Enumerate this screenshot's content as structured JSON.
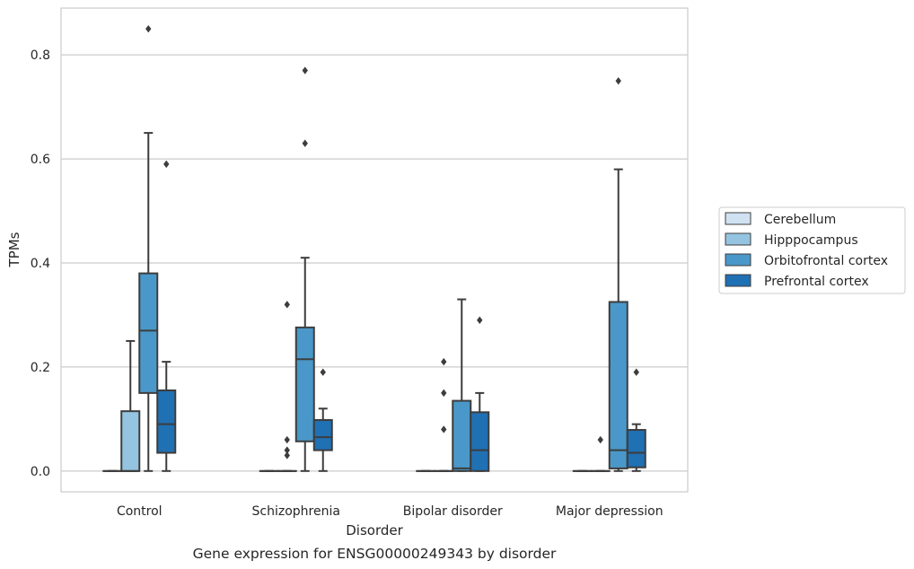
{
  "chart_data": {
    "type": "box",
    "title": "",
    "xlabel": "Disorder",
    "ylabel": "TPMs",
    "caption": "Gene expression for ENSG00000249343 by disorder",
    "categories": [
      "Control",
      "Schizophrenia",
      "Bipolar disorder",
      "Major depression"
    ],
    "ylim": [
      -0.04,
      0.89
    ],
    "yticks": [
      0.0,
      0.2,
      0.4,
      0.6,
      0.8
    ],
    "ytick_labels": [
      "0.0",
      "0.2",
      "0.4",
      "0.6",
      "0.8"
    ],
    "grid": "horizontal",
    "legend_position": "right",
    "series": [
      {
        "name": "Cerebellum",
        "color": "#d0e1f2",
        "boxes": [
          {
            "whislo": 0,
            "q1": 0,
            "med": 0,
            "q3": 0,
            "whishi": 0,
            "fliers": []
          },
          {
            "whislo": 0,
            "q1": 0,
            "med": 0,
            "q3": 0,
            "whishi": 0,
            "fliers": []
          },
          {
            "whislo": 0,
            "q1": 0,
            "med": 0,
            "q3": 0,
            "whishi": 0,
            "fliers": []
          },
          {
            "whislo": 0,
            "q1": 0,
            "med": 0,
            "q3": 0,
            "whishi": 0,
            "fliers": []
          }
        ]
      },
      {
        "name": "Hipppocampus",
        "color": "#94c4df",
        "boxes": [
          {
            "whislo": 0,
            "q1": 0,
            "med": 0,
            "q3": 0.115,
            "whishi": 0.25,
            "fliers": []
          },
          {
            "whislo": 0,
            "q1": 0,
            "med": 0,
            "q3": 0,
            "whishi": 0,
            "fliers": [
              0.03,
              0.04,
              0.06,
              0.32
            ]
          },
          {
            "whislo": 0,
            "q1": 0,
            "med": 0,
            "q3": 0,
            "whishi": 0,
            "fliers": [
              0.08,
              0.15,
              0.21
            ]
          },
          {
            "whislo": 0,
            "q1": 0,
            "med": 0,
            "q3": 0,
            "whishi": 0,
            "fliers": [
              0.06
            ]
          }
        ]
      },
      {
        "name": "Orbitofrontal cortex",
        "color": "#4a98c9",
        "boxes": [
          {
            "whislo": 0,
            "q1": 0.15,
            "med": 0.27,
            "q3": 0.38,
            "whishi": 0.65,
            "fliers": [
              0.85
            ]
          },
          {
            "whislo": 0,
            "q1": 0.057,
            "med": 0.215,
            "q3": 0.276,
            "whishi": 0.41,
            "fliers": [
              0.63,
              0.77
            ]
          },
          {
            "whislo": 0,
            "q1": 0,
            "med": 0.005,
            "q3": 0.135,
            "whishi": 0.33,
            "fliers": []
          },
          {
            "whislo": 0,
            "q1": 0.005,
            "med": 0.04,
            "q3": 0.325,
            "whishi": 0.58,
            "fliers": [
              0.75
            ]
          }
        ]
      },
      {
        "name": "Prefrontal cortex",
        "color": "#2070b4",
        "boxes": [
          {
            "whislo": 0,
            "q1": 0.035,
            "med": 0.09,
            "q3": 0.155,
            "whishi": 0.21,
            "fliers": [
              0.59
            ]
          },
          {
            "whislo": 0,
            "q1": 0.04,
            "med": 0.065,
            "q3": 0.098,
            "whishi": 0.12,
            "fliers": [
              0.19
            ]
          },
          {
            "whislo": 0,
            "q1": 0,
            "med": 0.04,
            "q3": 0.113,
            "whishi": 0.15,
            "fliers": [
              0.29
            ]
          },
          {
            "whislo": 0,
            "q1": 0.007,
            "med": 0.035,
            "q3": 0.079,
            "whishi": 0.09,
            "fliers": [
              0.19
            ]
          }
        ]
      }
    ]
  }
}
